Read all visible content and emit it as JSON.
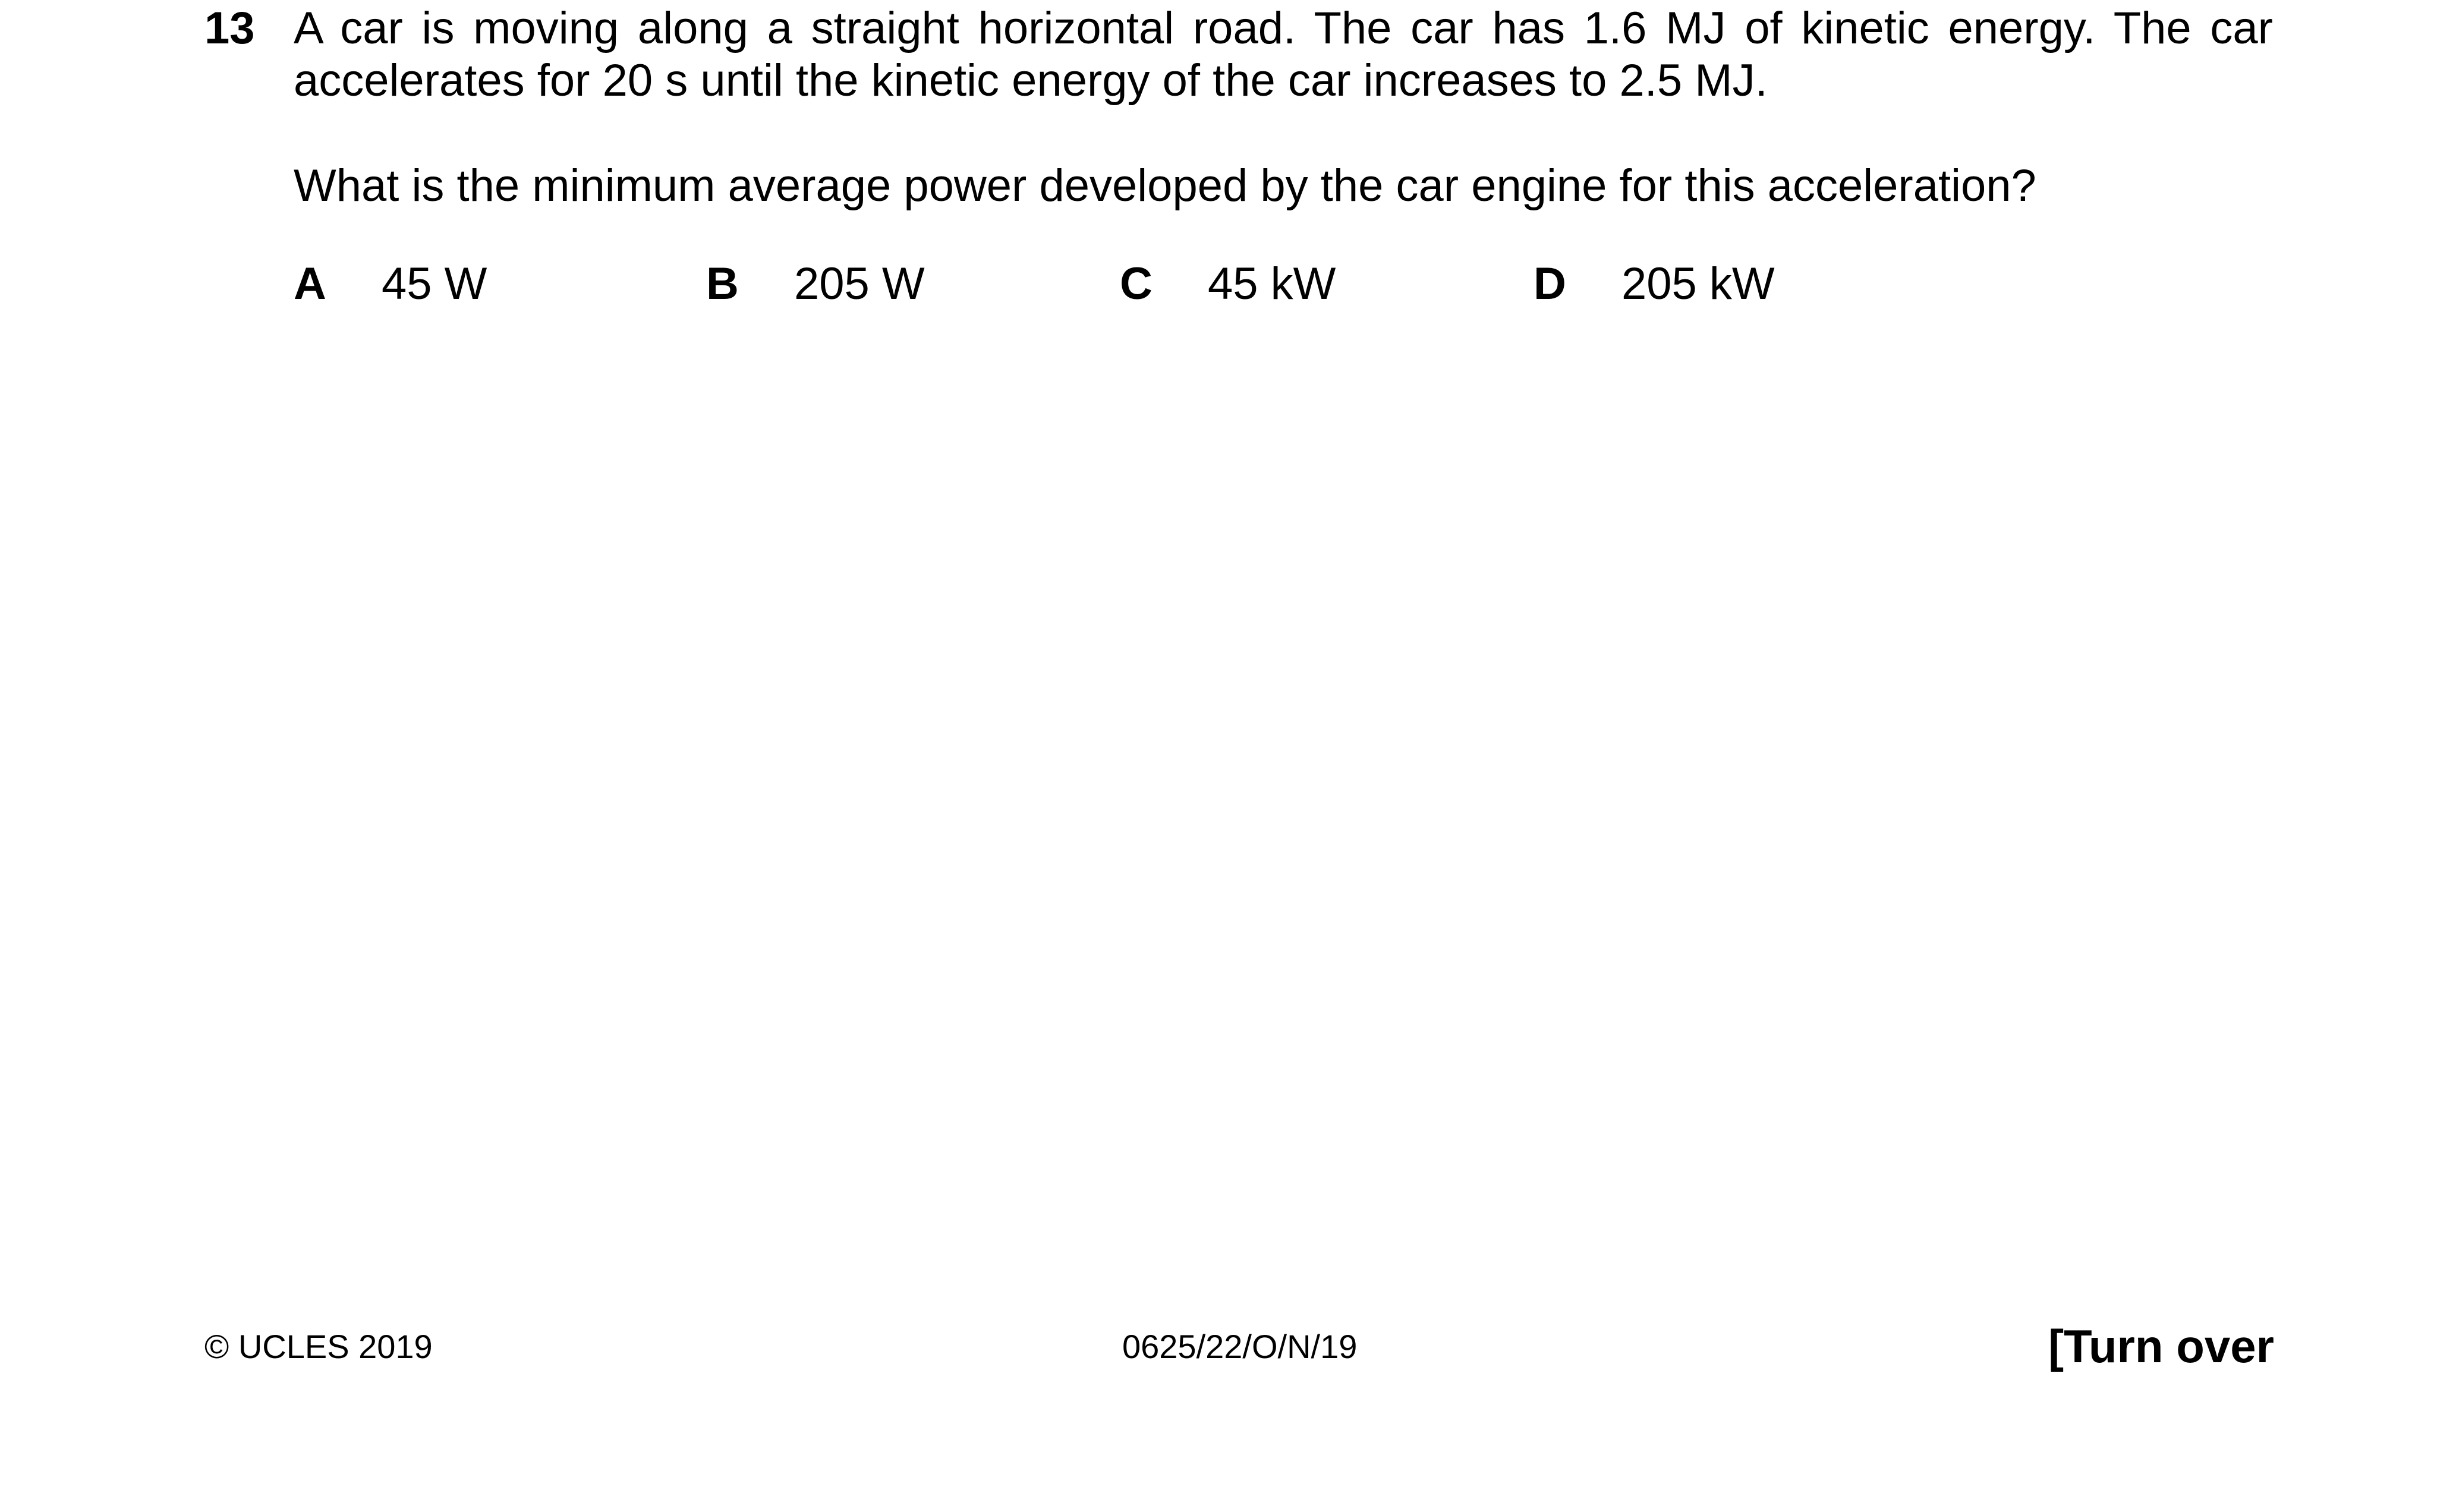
{
  "question": {
    "number": "13",
    "stem": "A car is moving along a straight horizontal road. The car has 1.6 MJ of kinetic energy. The car accelerates for 20 s until the kinetic energy of the car increases to 2.5 MJ.",
    "prompt": "What is the minimum average power developed by the car engine for this acceleration?",
    "options": [
      {
        "letter": "A",
        "value": "45 W"
      },
      {
        "letter": "B",
        "value": "205 W"
      },
      {
        "letter": "C",
        "value": "45 kW"
      },
      {
        "letter": "D",
        "value": "205 kW"
      }
    ]
  },
  "footer": {
    "copyright": "© UCLES 2019",
    "paper_code": "0625/22/O/N/19",
    "turn_over": "[Turn over"
  }
}
